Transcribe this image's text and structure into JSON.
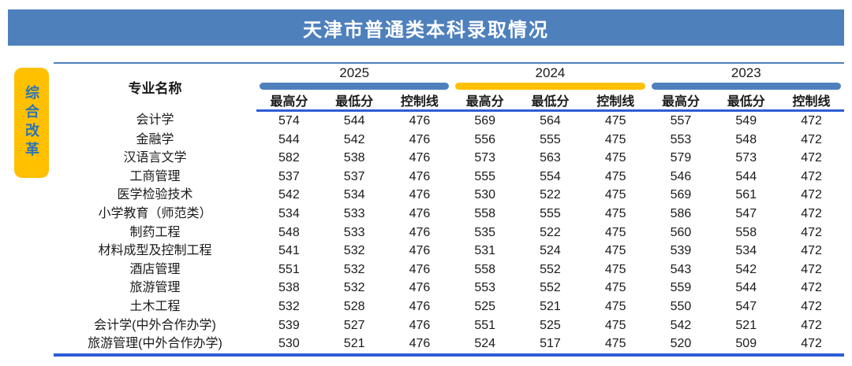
{
  "banner": {
    "title": "天津市普通类本科录取情况"
  },
  "badge": {
    "label": "综合改革"
  },
  "colors": {
    "accent-blue": "#4e80bc",
    "accent-yellow": "#ffc000",
    "line-blue": "#2e5cd6",
    "badge-bg": "#ffc000",
    "badge-text": "#2e74b5",
    "banner-bg": "#4e80bc",
    "banner-text": "#ffffff"
  },
  "table": {
    "major_header": "专业名称",
    "year_groups": [
      {
        "year": "2025",
        "accent": "#4e80bc"
      },
      {
        "year": "2024",
        "accent": "#ffc000"
      },
      {
        "year": "2023",
        "accent": "#4e80bc"
      }
    ],
    "sub_headers": [
      "最高分",
      "最低分",
      "控制线"
    ],
    "rows": [
      {
        "major": "会计学",
        "scores": [
          574,
          544,
          476,
          569,
          564,
          475,
          557,
          549,
          472
        ]
      },
      {
        "major": "金融学",
        "scores": [
          544,
          542,
          476,
          556,
          555,
          475,
          553,
          548,
          472
        ]
      },
      {
        "major": "汉语言文学",
        "scores": [
          582,
          538,
          476,
          573,
          563,
          475,
          579,
          573,
          472
        ]
      },
      {
        "major": "工商管理",
        "scores": [
          537,
          537,
          476,
          555,
          554,
          475,
          546,
          544,
          472
        ]
      },
      {
        "major": "医学检验技术",
        "scores": [
          542,
          534,
          476,
          530,
          522,
          475,
          569,
          561,
          472
        ]
      },
      {
        "major": "小学教育（师范类）",
        "scores": [
          534,
          533,
          476,
          558,
          555,
          475,
          586,
          547,
          472
        ]
      },
      {
        "major": "制药工程",
        "scores": [
          548,
          533,
          476,
          535,
          522,
          475,
          560,
          558,
          472
        ]
      },
      {
        "major": "材料成型及控制工程",
        "scores": [
          541,
          532,
          476,
          531,
          524,
          475,
          539,
          534,
          472
        ]
      },
      {
        "major": "酒店管理",
        "scores": [
          551,
          532,
          476,
          558,
          552,
          475,
          543,
          542,
          472
        ]
      },
      {
        "major": "旅游管理",
        "scores": [
          538,
          532,
          476,
          553,
          552,
          475,
          559,
          544,
          472
        ]
      },
      {
        "major": "土木工程",
        "scores": [
          532,
          528,
          476,
          525,
          521,
          475,
          550,
          547,
          472
        ]
      },
      {
        "major": "会计学(中外合作办学)",
        "scores": [
          539,
          527,
          476,
          551,
          525,
          475,
          542,
          521,
          472
        ]
      },
      {
        "major": "旅游管理(中外合作办学)",
        "scores": [
          530,
          521,
          476,
          524,
          517,
          475,
          520,
          509,
          472
        ]
      }
    ]
  }
}
